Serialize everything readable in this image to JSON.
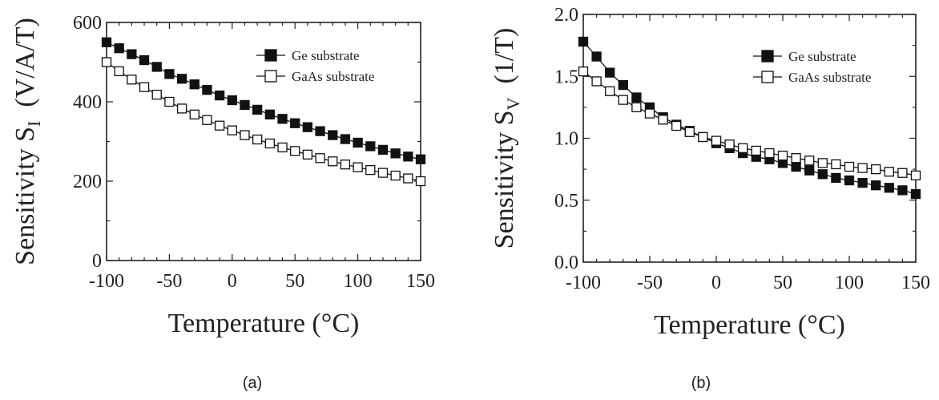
{
  "figure": {
    "panels": [
      "(a)",
      "(b)"
    ]
  },
  "chart_data": [
    {
      "type": "line",
      "panel_label": "(a)",
      "xlabel": "Temperature (°C)",
      "ylabel_main": "Sensitivity S",
      "ylabel_sub": "I",
      "ylabel_unit": "(V/A/T)",
      "xlim": [
        -100,
        150
      ],
      "ylim": [
        0,
        600
      ],
      "xticks": [
        -100,
        -50,
        0,
        50,
        100,
        150
      ],
      "yticks": [
        0,
        200,
        400,
        600
      ],
      "legend_position": "top-right",
      "x": [
        -100,
        -90,
        -80,
        -70,
        -60,
        -50,
        -40,
        -30,
        -20,
        -10,
        0,
        10,
        20,
        30,
        40,
        50,
        60,
        70,
        80,
        90,
        100,
        110,
        120,
        130,
        140,
        150
      ],
      "series": [
        {
          "name": "Ge substrate",
          "marker": "filled-square",
          "values": [
            550,
            535,
            520,
            505,
            488,
            470,
            458,
            444,
            430,
            416,
            404,
            392,
            380,
            368,
            357,
            346,
            336,
            326,
            316,
            306,
            297,
            288,
            279,
            270,
            262,
            255
          ]
        },
        {
          "name": "GaAs substrate",
          "marker": "open-square",
          "values": [
            500,
            477,
            456,
            437,
            418,
            400,
            383,
            368,
            354,
            340,
            328,
            316,
            305,
            295,
            285,
            276,
            267,
            258,
            250,
            242,
            235,
            228,
            221,
            214,
            207,
            200
          ]
        }
      ]
    },
    {
      "type": "line",
      "panel_label": "(b)",
      "xlabel": "Temperature (°C)",
      "ylabel_main": "Sensitivity S",
      "ylabel_sub": "V",
      "ylabel_unit": "(1/T)",
      "xlim": [
        -100,
        150
      ],
      "ylim": [
        0,
        2.0
      ],
      "xticks": [
        -100,
        -50,
        0,
        50,
        100,
        150
      ],
      "yticks": [
        "0.0",
        "0.5",
        "1.0",
        "1.5",
        "2.0"
      ],
      "legend_position": "top-right",
      "x": [
        -100,
        -90,
        -80,
        -70,
        -60,
        -50,
        -40,
        -30,
        -20,
        -10,
        0,
        10,
        20,
        30,
        40,
        50,
        60,
        70,
        80,
        90,
        100,
        110,
        120,
        130,
        140,
        150
      ],
      "series": [
        {
          "name": "Ge substrate",
          "marker": "filled-square",
          "values": [
            1.78,
            1.66,
            1.53,
            1.43,
            1.33,
            1.25,
            1.17,
            1.11,
            1.06,
            1.01,
            0.96,
            0.92,
            0.88,
            0.85,
            0.83,
            0.8,
            0.77,
            0.74,
            0.71,
            0.68,
            0.66,
            0.64,
            0.62,
            0.6,
            0.58,
            0.55
          ]
        },
        {
          "name": "GaAs substrate",
          "marker": "open-square",
          "values": [
            1.54,
            1.46,
            1.38,
            1.31,
            1.25,
            1.2,
            1.15,
            1.1,
            1.05,
            1.01,
            0.98,
            0.95,
            0.92,
            0.9,
            0.88,
            0.86,
            0.84,
            0.82,
            0.8,
            0.79,
            0.77,
            0.76,
            0.75,
            0.73,
            0.72,
            0.7
          ]
        }
      ]
    }
  ]
}
